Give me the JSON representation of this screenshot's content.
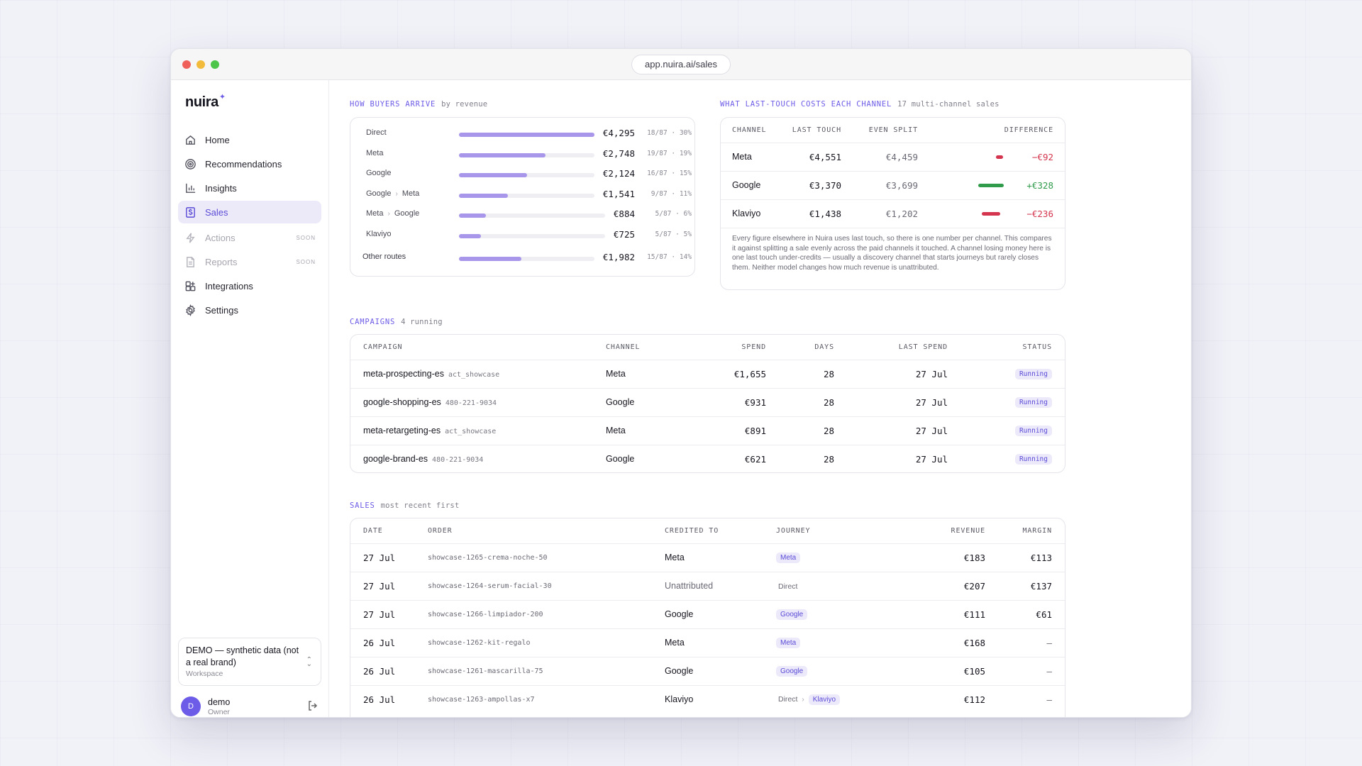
{
  "browser": {
    "url": "app.nuira.ai/sales"
  },
  "sidebar": {
    "logo": "nuira",
    "logo_mark": "✦",
    "items": [
      {
        "label": "Home",
        "icon": "home-icon",
        "state": "normal",
        "badge": ""
      },
      {
        "label": "Recommendations",
        "icon": "target-icon",
        "state": "normal",
        "badge": ""
      },
      {
        "label": "Insights",
        "icon": "bar-chart-icon",
        "state": "normal",
        "badge": ""
      },
      {
        "label": "Sales",
        "icon": "dollar-icon",
        "state": "active",
        "badge": ""
      },
      {
        "label": "Actions",
        "icon": "bolt-icon",
        "state": "disabled",
        "badge": "SOON"
      },
      {
        "label": "Reports",
        "icon": "document-icon",
        "state": "disabled",
        "badge": "SOON"
      },
      {
        "label": "Integrations",
        "icon": "grid-plus-icon",
        "state": "normal",
        "badge": ""
      },
      {
        "label": "Settings",
        "icon": "gear-icon",
        "state": "normal",
        "badge": ""
      }
    ],
    "workspace": {
      "name": "DEMO — synthetic data (not a real brand)",
      "sub": "Workspace"
    },
    "user": {
      "initial": "D",
      "name": "demo",
      "role": "Owner"
    }
  },
  "routes": {
    "title": "HOW BUYERS ARRIVE",
    "subtitle": "by revenue",
    "rows": [
      {
        "path": [
          "Direct"
        ],
        "value": "€4,295",
        "share": "18/87 · 30%",
        "fraction": 1.0
      },
      {
        "path": [
          "Meta"
        ],
        "value": "€2,748",
        "share": "19/87 · 19%",
        "fraction": 0.64
      },
      {
        "path": [
          "Google"
        ],
        "value": "€2,124",
        "share": "16/87 · 15%",
        "fraction": 0.5
      },
      {
        "path": [
          "Google",
          "Meta"
        ],
        "value": "€1,541",
        "share": "9/87 · 11%",
        "fraction": 0.36
      },
      {
        "path": [
          "Meta",
          "Google"
        ],
        "value": "€884",
        "share": "5/87 · 6%",
        "fraction": 0.2
      },
      {
        "path": [
          "Klaviyo"
        ],
        "value": "€725",
        "share": "5/87 · 5%",
        "fraction": 0.16
      },
      {
        "path": [
          "Other routes"
        ],
        "value": "€1,982",
        "share": "15/87 · 14%",
        "fraction": 0.46
      }
    ]
  },
  "lasttouch": {
    "title": "WHAT LAST-TOUCH COSTS EACH CHANNEL",
    "subtitle": "17 multi-channel sales",
    "columns": [
      "CHANNEL",
      "LAST TOUCH",
      "EVEN SPLIT",
      "DIFFERENCE"
    ],
    "rows": [
      {
        "channel": "Meta",
        "last_touch": "€4,551",
        "even_split": "€4,459",
        "difference": "−€92",
        "sign": "neg",
        "magnitude": 0.28
      },
      {
        "channel": "Google",
        "last_touch": "€3,370",
        "even_split": "€3,699",
        "difference": "+€328",
        "sign": "pos",
        "magnitude": 1.0
      },
      {
        "channel": "Klaviyo",
        "last_touch": "€1,438",
        "even_split": "€1,202",
        "difference": "−€236",
        "sign": "neg",
        "magnitude": 0.72
      }
    ],
    "note": "Every figure elsewhere in Nuira uses last touch, so there is one number per channel. This compares it against splitting a sale evenly across the paid channels it touched. A channel losing money here is one last touch under-credits — usually a discovery channel that starts journeys but rarely closes them. Neither model changes how much revenue is unattributed.",
    "colors": {
      "neg": "#d4344d",
      "pos": "#2f9b4b"
    }
  },
  "campaigns": {
    "title": "CAMPAIGNS",
    "subtitle": "4 running",
    "columns": [
      "CAMPAIGN",
      "CHANNEL",
      "SPEND",
      "DAYS",
      "LAST SPEND",
      "STATUS"
    ],
    "rows": [
      {
        "name": "meta-prospecting-es",
        "account": "act_showcase",
        "channel": "Meta",
        "spend": "€1,655",
        "days": "28",
        "last_spend": "27 Jul",
        "status": "Running"
      },
      {
        "name": "google-shopping-es",
        "account": "480-221-9034",
        "channel": "Google",
        "spend": "€931",
        "days": "28",
        "last_spend": "27 Jul",
        "status": "Running"
      },
      {
        "name": "meta-retargeting-es",
        "account": "act_showcase",
        "channel": "Meta",
        "spend": "€891",
        "days": "28",
        "last_spend": "27 Jul",
        "status": "Running"
      },
      {
        "name": "google-brand-es",
        "account": "480-221-9034",
        "channel": "Google",
        "spend": "€621",
        "days": "28",
        "last_spend": "27 Jul",
        "status": "Running"
      }
    ]
  },
  "sales": {
    "title": "SALES",
    "subtitle": "most recent first",
    "columns": [
      "DATE",
      "ORDER",
      "CREDITED TO",
      "JOURNEY",
      "REVENUE",
      "MARGIN"
    ],
    "rows": [
      {
        "date": "27 Jul",
        "order": "showcase-1265-crema-noche-50",
        "credited": "Meta",
        "credited_muted": false,
        "journey": [
          {
            "label": "Meta",
            "pill": true
          }
        ],
        "revenue": "€183",
        "margin": "€113"
      },
      {
        "date": "27 Jul",
        "order": "showcase-1264-serum-facial-30",
        "credited": "Unattributed",
        "credited_muted": true,
        "journey": [
          {
            "label": "Direct",
            "pill": false
          }
        ],
        "revenue": "€207",
        "margin": "€137"
      },
      {
        "date": "27 Jul",
        "order": "showcase-1266-limpiador-200",
        "credited": "Google",
        "credited_muted": false,
        "journey": [
          {
            "label": "Google",
            "pill": true
          }
        ],
        "revenue": "€111",
        "margin": "€61"
      },
      {
        "date": "26 Jul",
        "order": "showcase-1262-kit-regalo",
        "credited": "Meta",
        "credited_muted": false,
        "journey": [
          {
            "label": "Meta",
            "pill": true
          }
        ],
        "revenue": "€168",
        "margin": "—"
      },
      {
        "date": "26 Jul",
        "order": "showcase-1261-mascarilla-75",
        "credited": "Google",
        "credited_muted": false,
        "journey": [
          {
            "label": "Google",
            "pill": true
          }
        ],
        "revenue": "€105",
        "margin": "—"
      },
      {
        "date": "26 Jul",
        "order": "showcase-1263-ampollas-x7",
        "credited": "Klaviyo",
        "credited_muted": false,
        "journey": [
          {
            "label": "Direct",
            "pill": false
          },
          {
            "label": "Klaviyo",
            "pill": true
          }
        ],
        "revenue": "€112",
        "margin": "—"
      }
    ]
  },
  "colors": {
    "accent": "#6c5ce7",
    "bar": "#a896ea",
    "pill_bg": "#ece9fb"
  }
}
